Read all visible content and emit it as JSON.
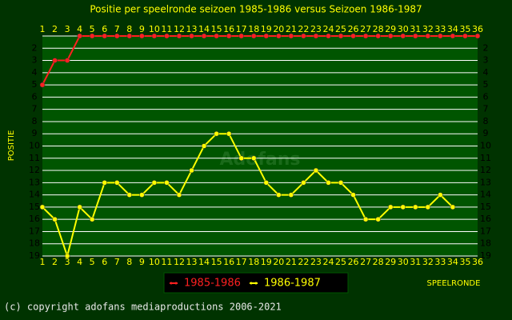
{
  "chart_data": {
    "type": "line",
    "title": "Positie per speelronde seizoen 1985-1986 versus Seizoen 1986-1987",
    "x_label": "SPEELRONDE",
    "y_label": "POSITIE",
    "watermark": "Adofans",
    "footer": "(c) copyright adofans mediaproductions 2006-2021",
    "x": [
      1,
      2,
      3,
      4,
      5,
      6,
      7,
      8,
      9,
      10,
      11,
      12,
      13,
      14,
      15,
      16,
      17,
      18,
      19,
      20,
      21,
      22,
      23,
      24,
      25,
      26,
      27,
      28,
      29,
      30,
      31,
      32,
      33,
      34,
      35,
      36
    ],
    "xlim": [
      1,
      36
    ],
    "xticks": [
      1,
      2,
      3,
      4,
      5,
      6,
      7,
      8,
      9,
      10,
      11,
      12,
      13,
      14,
      15,
      16,
      17,
      18,
      19,
      20,
      21,
      22,
      23,
      24,
      25,
      26,
      27,
      28,
      29,
      30,
      31,
      32,
      33,
      34,
      35,
      36
    ],
    "ylim": [
      1,
      19
    ],
    "y_inverted": true,
    "yticks": [
      2,
      3,
      4,
      5,
      6,
      7,
      8,
      9,
      10,
      11,
      12,
      13,
      14,
      15,
      16,
      17,
      18,
      19
    ],
    "grid": true,
    "series": [
      {
        "name": "1985-1986",
        "color": "#ff2020",
        "values": [
          5,
          3,
          3,
          1,
          1,
          1,
          1,
          1,
          1,
          1,
          1,
          1,
          1,
          1,
          1,
          1,
          1,
          1,
          1,
          1,
          1,
          1,
          1,
          1,
          1,
          1,
          1,
          1,
          1,
          1,
          1,
          1,
          1,
          1,
          1,
          1
        ]
      },
      {
        "name": "1986-1987",
        "color": "#ffff00",
        "values": [
          15,
          16,
          19,
          15,
          16,
          13,
          13,
          14,
          14,
          13,
          13,
          14,
          12,
          10,
          9,
          9,
          11,
          11,
          13,
          14,
          14,
          13,
          12,
          13,
          13,
          14,
          16,
          16,
          15,
          15,
          15,
          15,
          14,
          15,
          null,
          null
        ]
      }
    ]
  }
}
